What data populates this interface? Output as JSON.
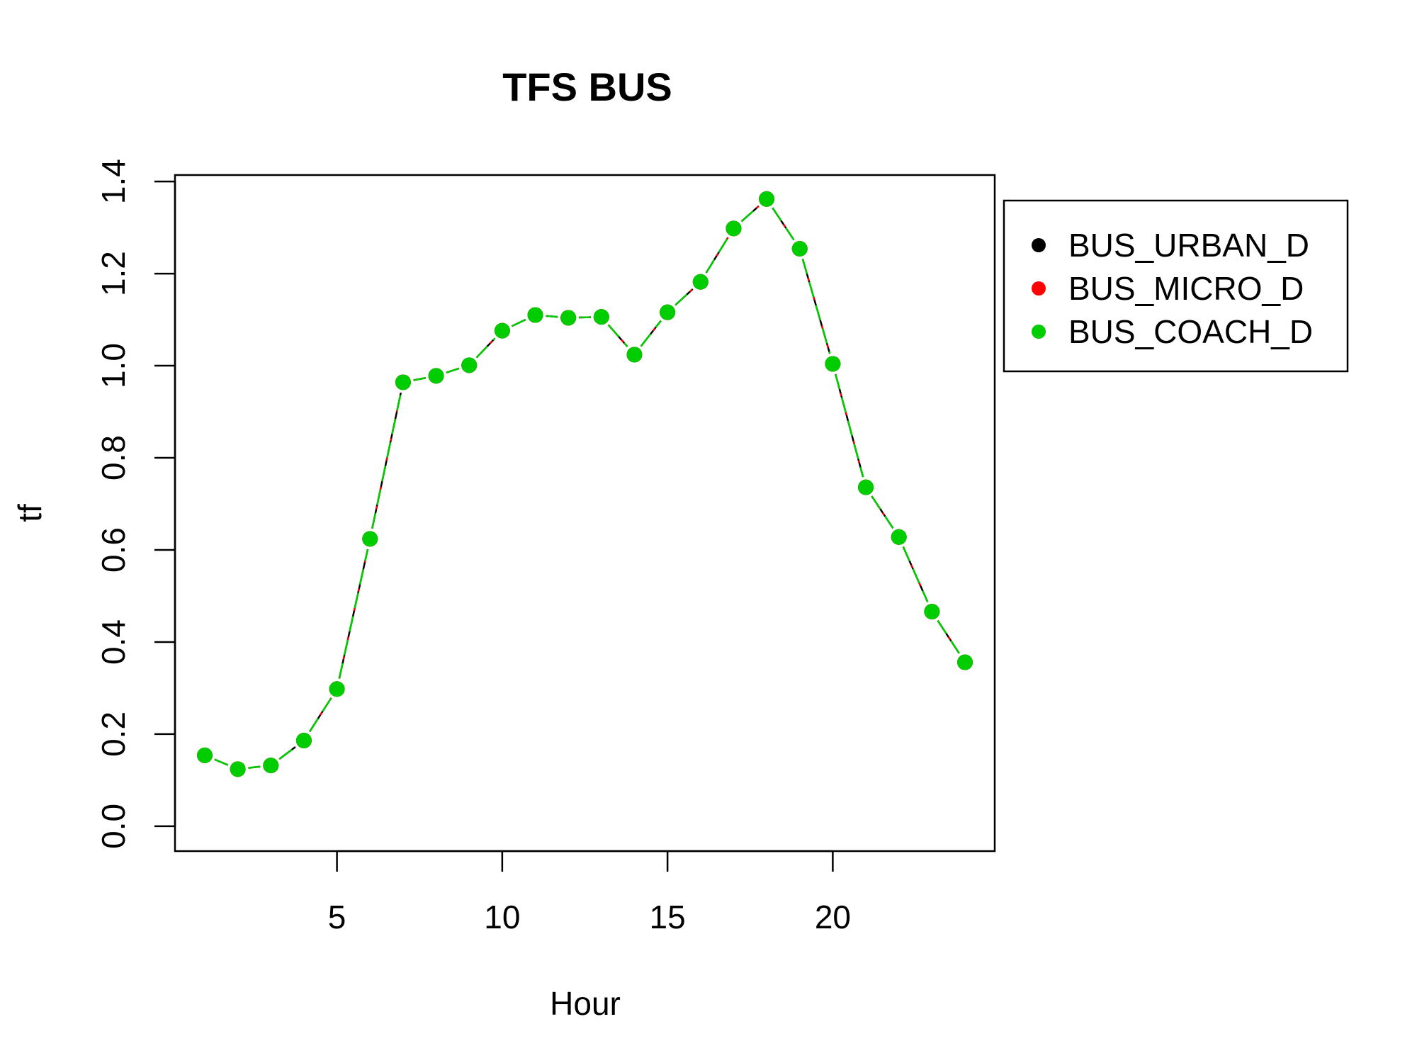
{
  "chart_data": {
    "type": "line",
    "title": "TFS BUS",
    "xlabel": "Hour",
    "ylabel": "tf",
    "xlim": [
      0.1,
      24.9
    ],
    "ylim": [
      -0.054,
      1.414
    ],
    "x_ticks": [
      5,
      10,
      15,
      20
    ],
    "x_tick_labels": [
      "5",
      "10",
      "15",
      "20"
    ],
    "y_ticks": [
      0.0,
      0.2,
      0.4,
      0.6,
      0.8,
      1.0,
      1.2,
      1.4
    ],
    "y_tick_labels": [
      "0.0",
      "0.2",
      "0.4",
      "0.6",
      "0.8",
      "1.0",
      "1.2",
      "1.4"
    ],
    "grid": false,
    "legend_position": "right",
    "x": [
      1,
      2,
      3,
      4,
      5,
      6,
      7,
      8,
      9,
      10,
      11,
      12,
      13,
      14,
      15,
      16,
      17,
      18,
      19,
      20,
      21,
      22,
      23,
      24
    ],
    "series": [
      {
        "name": "BUS_URBAN_D",
        "color": "#000000",
        "values": [
          0.154,
          0.124,
          0.132,
          0.186,
          0.298,
          0.624,
          0.964,
          0.978,
          1.001,
          1.076,
          1.11,
          1.104,
          1.106,
          1.024,
          1.116,
          1.182,
          1.298,
          1.362,
          1.254,
          1.004,
          0.736,
          0.628,
          0.466,
          0.356
        ]
      },
      {
        "name": "BUS_MICRO_D",
        "color": "#ff0000",
        "values": [
          0.154,
          0.124,
          0.132,
          0.186,
          0.298,
          0.624,
          0.964,
          0.978,
          1.001,
          1.076,
          1.11,
          1.104,
          1.106,
          1.024,
          1.116,
          1.182,
          1.298,
          1.362,
          1.254,
          1.004,
          0.736,
          0.628,
          0.466,
          0.356
        ]
      },
      {
        "name": "BUS_COACH_D",
        "color": "#00cd00",
        "values": [
          0.154,
          0.124,
          0.132,
          0.186,
          0.298,
          0.624,
          0.964,
          0.978,
          1.001,
          1.076,
          1.11,
          1.104,
          1.106,
          1.024,
          1.116,
          1.182,
          1.298,
          1.362,
          1.254,
          1.004,
          0.736,
          0.628,
          0.466,
          0.356
        ]
      }
    ]
  }
}
